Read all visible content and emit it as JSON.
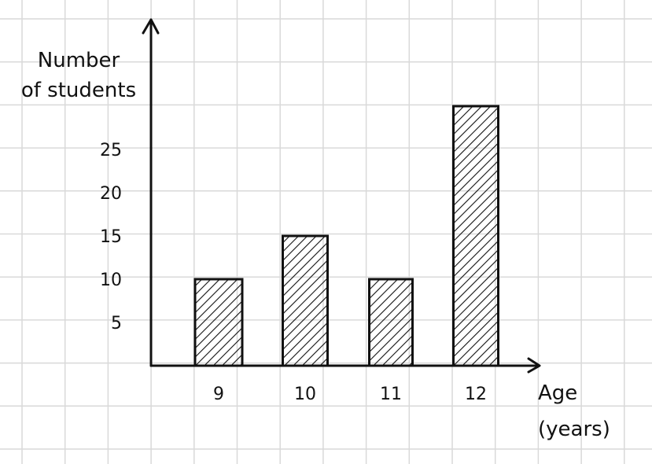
{
  "chart_data": {
    "type": "bar",
    "title": "",
    "xlabel": "Age\n(years)",
    "ylabel": "Number\nof students",
    "categories": [
      "9",
      "10",
      "11",
      "12"
    ],
    "values": [
      10,
      15,
      10,
      30
    ],
    "y_tick_labels": [
      "5",
      "10",
      "15",
      "20",
      "25"
    ],
    "ylim": [
      0,
      30
    ],
    "grid": true,
    "bar_fill": "hatched",
    "bar_color": "#111111",
    "grid_color": "#d9d9d9"
  }
}
